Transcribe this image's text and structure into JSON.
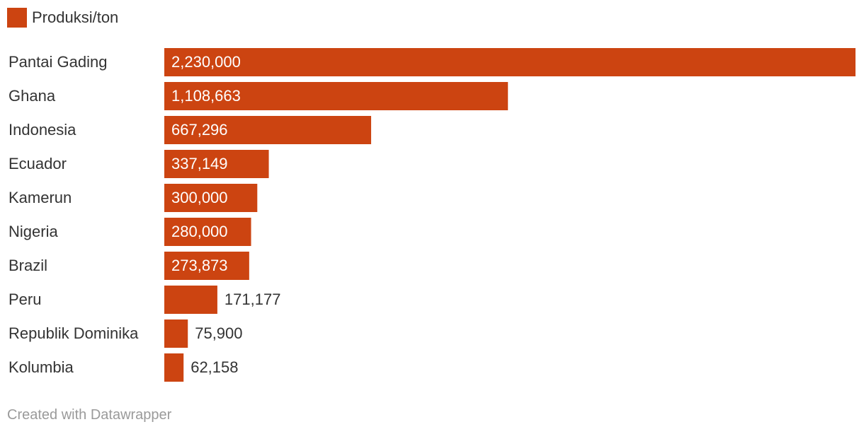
{
  "legend": {
    "label": "Produksi/ton",
    "color": "#cc4411"
  },
  "chart_data": {
    "type": "bar",
    "orientation": "horizontal",
    "title": "",
    "xlabel": "",
    "ylabel": "",
    "categories": [
      "Pantai Gading",
      "Ghana",
      "Indonesia",
      "Ecuador",
      "Kamerun",
      "Nigeria",
      "Brazil",
      "Peru",
      "Republik Dominika",
      "Kolumbia"
    ],
    "series": [
      {
        "name": "Produksi/ton",
        "values": [
          2230000,
          1108663,
          667296,
          337149,
          300000,
          280000,
          273873,
          171177,
          75900,
          62158
        ],
        "labels": [
          "2,230,000",
          "1,108,663",
          "667,296",
          "337,149",
          "300,000",
          "280,000",
          "273,873",
          "171,177",
          "75,900",
          "62,158"
        ]
      }
    ],
    "xlim": [
      0,
      2230000
    ],
    "grid": false,
    "legend_position": "top-left"
  },
  "footer": {
    "credit": "Created with Datawrapper"
  }
}
